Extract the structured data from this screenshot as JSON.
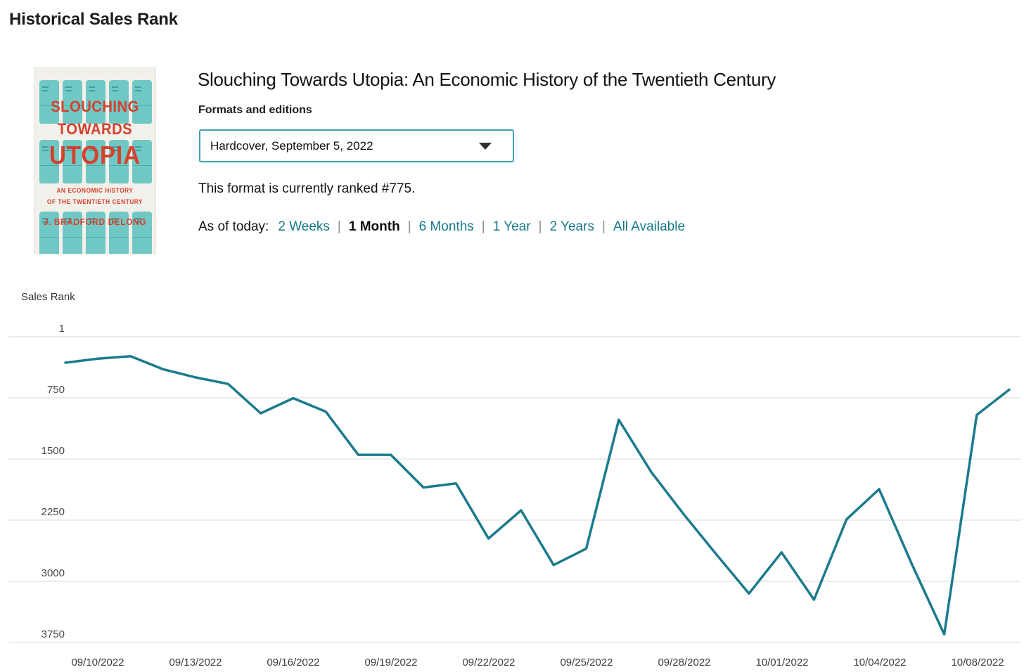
{
  "page": {
    "title": "Historical Sales Rank"
  },
  "book": {
    "title": "Slouching Towards Utopia: An Economic History of the Twentieth Century",
    "formats_label": "Formats and editions",
    "selected_format": "Hardcover, September 5, 2022",
    "rank_text": "This format is currently ranked #775.",
    "current_rank": 775,
    "as_of_label": "As of today:",
    "separator": "|",
    "ranges": [
      {
        "label": "2 Weeks",
        "selected": false
      },
      {
        "label": "1 Month",
        "selected": true
      },
      {
        "label": "6 Months",
        "selected": false
      },
      {
        "label": "1 Year",
        "selected": false
      },
      {
        "label": "2 Years",
        "selected": false
      },
      {
        "label": "All Available",
        "selected": false
      }
    ]
  },
  "cover": {
    "line1": "SLOUCHING",
    "line2": "TOWARDS",
    "line3": "UTOPIA",
    "line4": "AN ECONOMIC HISTORY",
    "line5": "OF THE TWENTIETH CENTURY",
    "line6": "J. BRADFORD DELONG"
  },
  "colors": {
    "accent_link": "#17798b",
    "chart_line": "#1b7b8d",
    "gridline": "#d9d9d9",
    "dropdown_border": "#3fa3b6",
    "cover_red": "#d6402e",
    "cover_teal": "#70c8c4"
  },
  "chart_data": {
    "type": "line",
    "title": "",
    "ylabel": "Sales Rank",
    "xlabel": "",
    "y_ticks": [
      1,
      750,
      1500,
      2250,
      3000,
      3750
    ],
    "ylim": [
      1,
      3750
    ],
    "y_axis_inverted": true,
    "grid": true,
    "legend": false,
    "x_tick_labels": [
      "09/10/2022",
      "09/13/2022",
      "09/16/2022",
      "09/19/2022",
      "09/22/2022",
      "09/25/2022",
      "09/28/2022",
      "10/01/2022",
      "10/04/2022",
      "10/08/2022"
    ],
    "x": [
      "09/09/2022",
      "09/10/2022",
      "09/11/2022",
      "09/12/2022",
      "09/13/2022",
      "09/14/2022",
      "09/15/2022",
      "09/16/2022",
      "09/17/2022",
      "09/18/2022",
      "09/19/2022",
      "09/20/2022",
      "09/21/2022",
      "09/22/2022",
      "09/23/2022",
      "09/24/2022",
      "09/25/2022",
      "09/26/2022",
      "09/27/2022",
      "09/28/2022",
      "09/29/2022",
      "09/30/2022",
      "10/01/2022",
      "10/02/2022",
      "10/03/2022",
      "10/04/2022",
      "10/05/2022",
      "10/06/2022",
      "10/07/2022",
      "10/08/2022"
    ],
    "series": [
      {
        "name": "Sales Rank",
        "values": [
          320,
          270,
          240,
          400,
          500,
          580,
          940,
          755,
          920,
          1450,
          1450,
          1850,
          1800,
          2475,
          2130,
          2800,
          2600,
          1020,
          1660,
          2180,
          2670,
          3150,
          2645,
          3225,
          2240,
          1870,
          2785,
          3650,
          960,
          650
        ]
      }
    ]
  }
}
